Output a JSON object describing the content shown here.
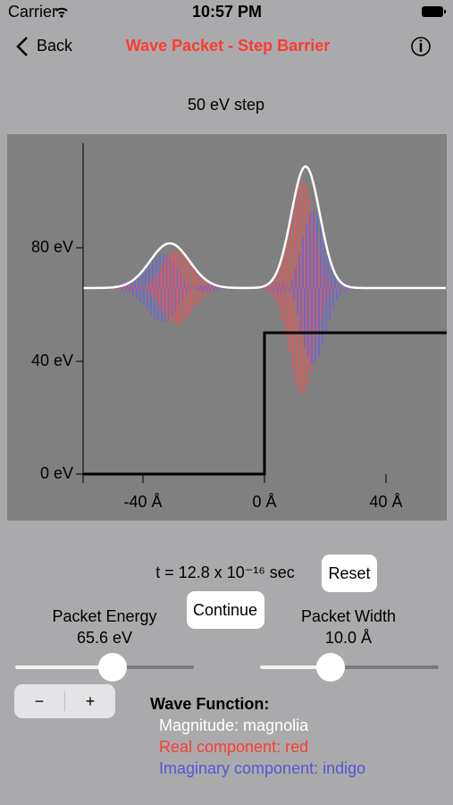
{
  "status_bar": {
    "carrier": "Carrier",
    "time": "10:57 PM"
  },
  "nav": {
    "back": "Back",
    "title": "Wave Packet - Step Barrier"
  },
  "plot": {
    "title": "50 eV step",
    "y_labels": [
      "80 eV",
      "40 eV",
      "0 eV"
    ],
    "x_labels": [
      "-40 Å",
      "0 Å",
      "40 Å"
    ]
  },
  "controls": {
    "time": "t = 12.8 x 10⁻¹⁶ sec",
    "reset": "Reset",
    "continue": "Continue",
    "energy_label": "Packet Energy",
    "energy_value": "65.6 eV",
    "width_label": "Packet Width",
    "width_value": "10.0 Å",
    "stepper_minus": "−",
    "stepper_plus": "+"
  },
  "legend": {
    "heading": "Wave Function:",
    "magnitude": "Magnitude: magnolia",
    "real": "Real component: red",
    "imaginary": "Imaginary component: indigo"
  }
}
